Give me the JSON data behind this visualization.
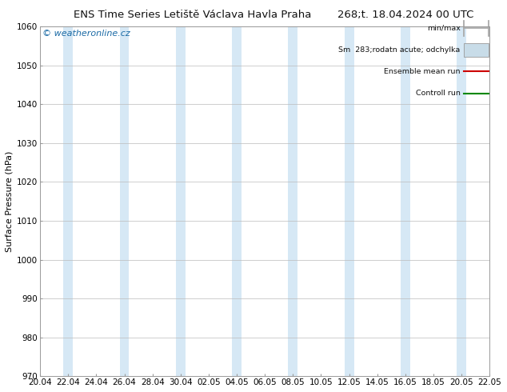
{
  "title_left": "ENS Time Series Letiště Václava Havla Praha",
  "title_right": "268;t. 18.04.2024 00 UTC",
  "ylabel": "Surface Pressure (hPa)",
  "watermark": "© weatheronline.cz",
  "ylim": [
    970,
    1060
  ],
  "yticks": [
    970,
    980,
    990,
    1000,
    1010,
    1020,
    1030,
    1040,
    1050,
    1060
  ],
  "xtick_labels": [
    "20.04",
    "22.04",
    "24.04",
    "26.04",
    "28.04",
    "30.04",
    "02.05",
    "04.05",
    "06.05",
    "08.05",
    "10.05",
    "12.05",
    "14.05",
    "16.05",
    "18.05",
    "20.05",
    "22.05"
  ],
  "num_xticks": 17,
  "shaded_columns": [
    1,
    3,
    5,
    7,
    9,
    11,
    13,
    15
  ],
  "shaded_column_color": "#d6e8f5",
  "bg_color": "#ffffff",
  "plot_bg_color": "#ffffff",
  "grid_color": "#bbbbbb",
  "title_fontsize": 9.5,
  "axis_fontsize": 8,
  "tick_fontsize": 7.5,
  "watermark_color": "#1a6aa5",
  "watermark_fontsize": 8,
  "legend_min_max_color": "#aaaaaa",
  "legend_fill_color": "#c8dce8",
  "legend_mean_color": "#cc0000",
  "legend_control_color": "#008800"
}
